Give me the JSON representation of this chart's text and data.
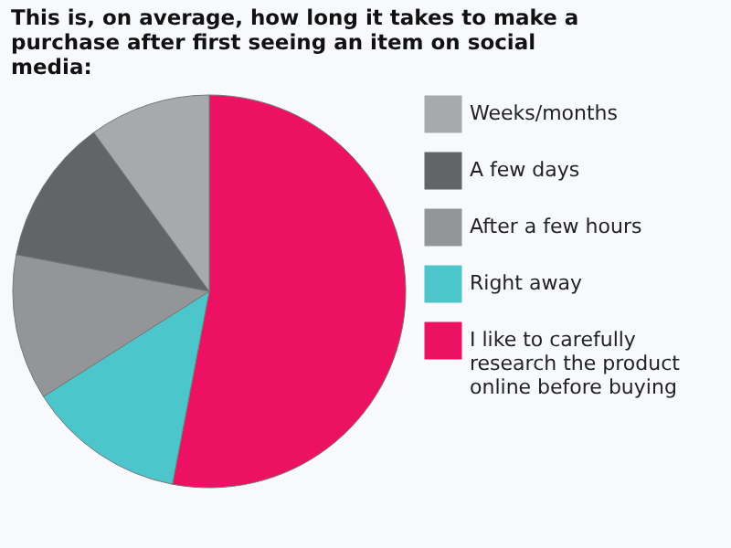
{
  "chart_data": {
    "type": "pie",
    "title": "This is, on average, how long it takes to make a purchase after first seeing an item on social media:",
    "categories": [
      "I like to carefully research the product online before buying",
      "Right away",
      "After a few hours",
      "A few days",
      "Weeks/months"
    ],
    "values": [
      53,
      13,
      12,
      12,
      10
    ],
    "colors": [
      "#ec1163",
      "#4cc5cb",
      "#939598",
      "#636466",
      "#a7a9ac"
    ],
    "legend": "right"
  }
}
